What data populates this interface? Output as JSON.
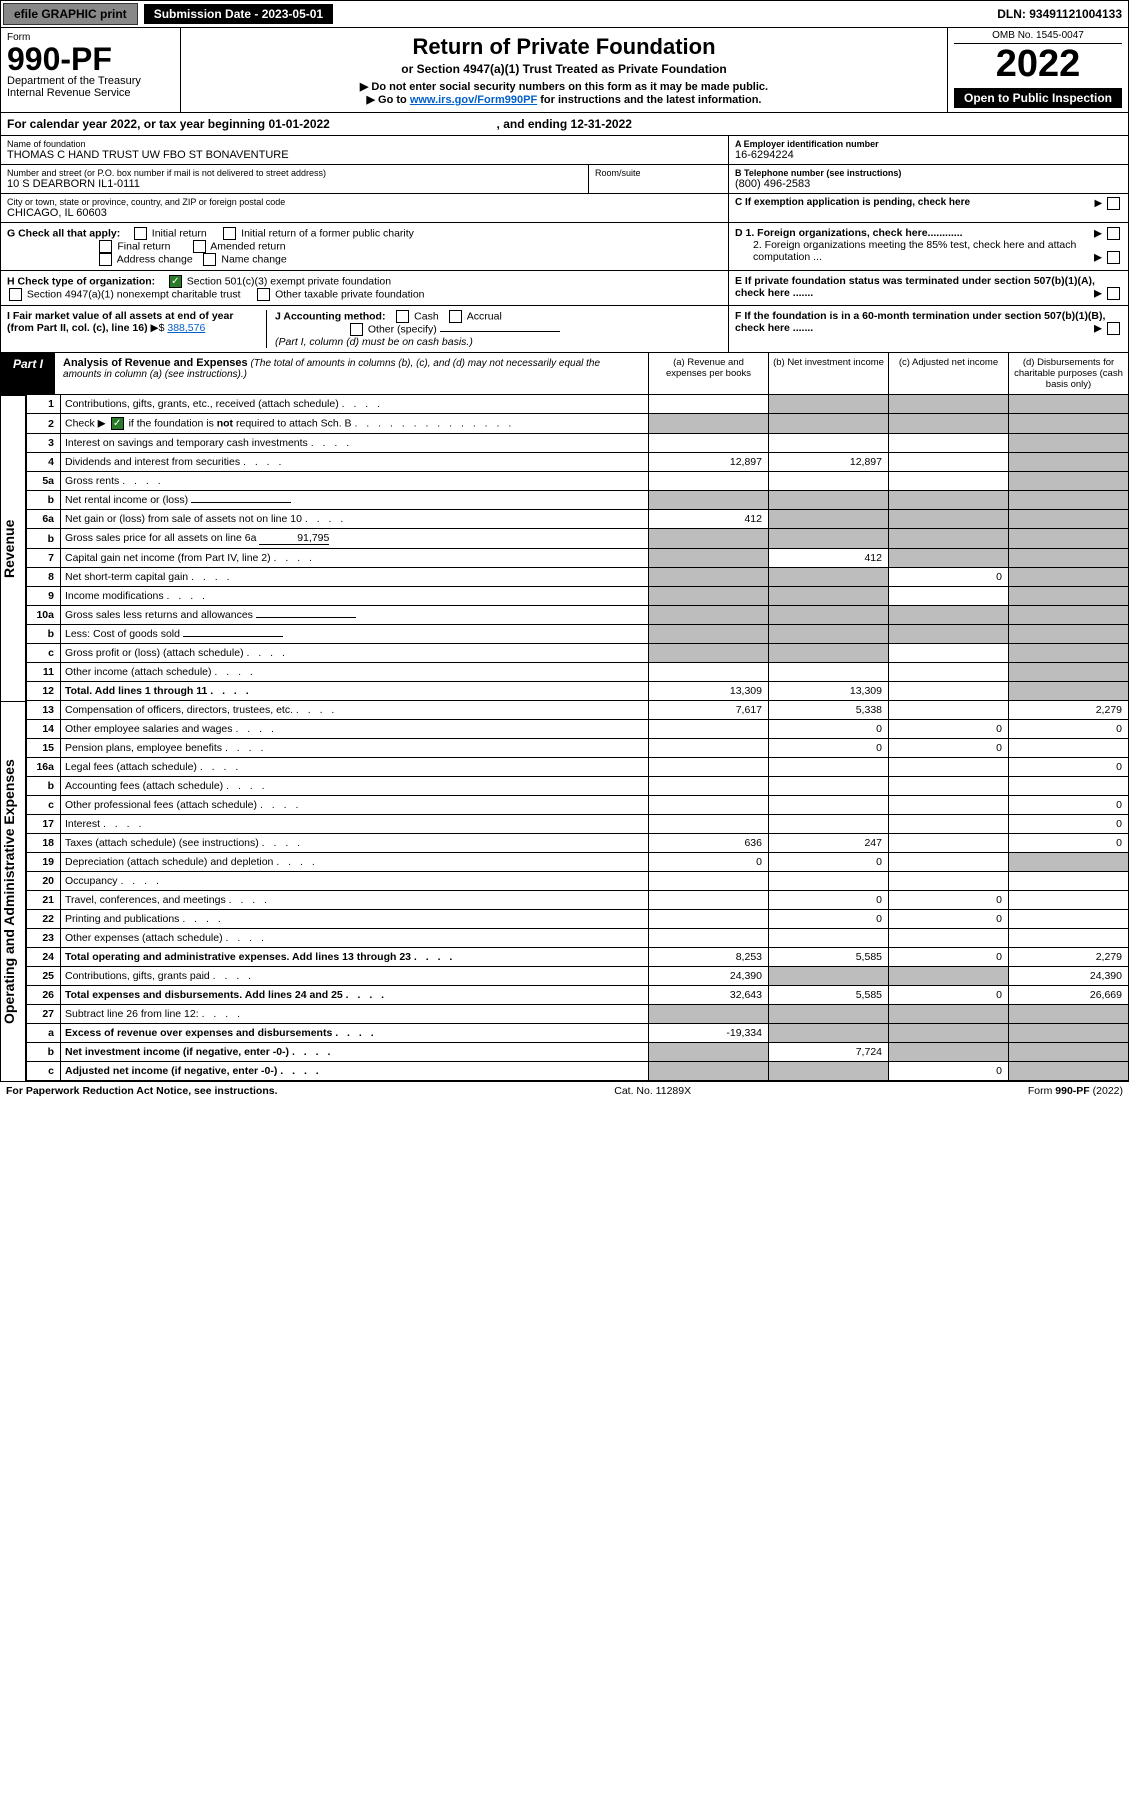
{
  "topbar": {
    "efile": "efile GRAPHIC print",
    "submission": "Submission Date - 2023-05-01",
    "dln": "DLN: 93491121004133"
  },
  "header": {
    "form_label": "Form",
    "form_number": "990-PF",
    "dept": "Department of the Treasury",
    "irs": "Internal Revenue Service",
    "title": "Return of Private Foundation",
    "subtitle": "or Section 4947(a)(1) Trust Treated as Private Foundation",
    "instr1": "▶ Do not enter social security numbers on this form as it may be made public.",
    "instr2_pre": "▶ Go to ",
    "instr2_link": "www.irs.gov/Form990PF",
    "instr2_post": " for instructions and the latest information.",
    "omb": "OMB No. 1545-0047",
    "year": "2022",
    "open": "Open to Public Inspection"
  },
  "calendar": {
    "text_pre": "For calendar year 2022, or tax year beginning ",
    "begin": "01-01-2022",
    "mid": " , and ending ",
    "end": "12-31-2022"
  },
  "meta": {
    "name_label": "Name of foundation",
    "name": "THOMAS C HAND TRUST UW FBO ST BONAVENTURE",
    "ein_label": "A Employer identification number",
    "ein": "16-6294224",
    "addr_label": "Number and street (or P.O. box number if mail is not delivered to street address)",
    "addr": "10 S DEARBORN IL1-0111",
    "room_label": "Room/suite",
    "phone_label": "B Telephone number (see instructions)",
    "phone": "(800) 496-2583",
    "city_label": "City or town, state or province, country, and ZIP or foreign postal code",
    "city": "CHICAGO, IL  60603",
    "c_label": "C If exemption application is pending, check here",
    "d1_label": "D 1. Foreign organizations, check here............",
    "d2_label": "2. Foreign organizations meeting the 85% test, check here and attach computation ...",
    "e_label": "E  If private foundation status was terminated under section 507(b)(1)(A), check here .......",
    "f_label": "F  If the foundation is in a 60-month termination under section 507(b)(1)(B), check here .......",
    "g_label": "G Check all that apply:",
    "g_opts": {
      "initial": "Initial return",
      "initial_former": "Initial return of a former public charity",
      "final": "Final return",
      "amended": "Amended return",
      "address": "Address change",
      "name_change": "Name change"
    },
    "h_label": "H Check type of organization:",
    "h_501c3": "Section 501(c)(3) exempt private foundation",
    "h_4947": "Section 4947(a)(1) nonexempt charitable trust",
    "h_other_tax": "Other taxable private foundation",
    "i_label": "I Fair market value of all assets at end of year (from Part II, col. (c), line 16)",
    "i_value": "388,576",
    "j_label": "J Accounting method:",
    "j_cash": "Cash",
    "j_accrual": "Accrual",
    "j_other": "Other (specify)",
    "j_note": "(Part I, column (d) must be on cash basis.)"
  },
  "part1": {
    "label": "Part I",
    "title": "Analysis of Revenue and Expenses",
    "note": " (The total of amounts in columns (b), (c), and (d) may not necessarily equal the amounts in column (a) (see instructions).)",
    "col_a": "(a)  Revenue and expenses per books",
    "col_b": "(b)  Net investment income",
    "col_c": "(c)  Adjusted net income",
    "col_d": "(d)  Disbursements for charitable purposes (cash basis only)"
  },
  "sections": {
    "revenue": "Revenue",
    "expenses": "Operating and Administrative Expenses"
  },
  "rows": [
    {
      "n": "1",
      "desc": "Contributions, gifts, grants, etc., received (attach schedule)",
      "a": "",
      "b": "shade",
      "c": "shade",
      "d": "shade"
    },
    {
      "n": "2",
      "desc": "Check ▶ ☑ if the foundation is not required to attach Sch. B",
      "a": "shade",
      "b": "shade",
      "c": "shade",
      "d": "shade",
      "check": true
    },
    {
      "n": "3",
      "desc": "Interest on savings and temporary cash investments",
      "a": "",
      "b": "",
      "c": "",
      "d": "shade"
    },
    {
      "n": "4",
      "desc": "Dividends and interest from securities",
      "a": "12,897",
      "b": "12,897",
      "c": "",
      "d": "shade"
    },
    {
      "n": "5a",
      "desc": "Gross rents",
      "a": "",
      "b": "",
      "c": "",
      "d": "shade"
    },
    {
      "n": "b",
      "desc": "Net rental income or (loss)",
      "a": "shade",
      "b": "shade",
      "c": "shade",
      "d": "shade",
      "inline_blank": true
    },
    {
      "n": "6a",
      "desc": "Net gain or (loss) from sale of assets not on line 10",
      "a": "412",
      "b": "shade",
      "c": "shade",
      "d": "shade"
    },
    {
      "n": "b",
      "desc": "Gross sales price for all assets on line 6a",
      "a": "shade",
      "b": "shade",
      "c": "shade",
      "d": "shade",
      "inline_val": "91,795"
    },
    {
      "n": "7",
      "desc": "Capital gain net income (from Part IV, line 2)",
      "a": "shade",
      "b": "412",
      "c": "shade",
      "d": "shade"
    },
    {
      "n": "8",
      "desc": "Net short-term capital gain",
      "a": "shade",
      "b": "shade",
      "c": "0",
      "d": "shade"
    },
    {
      "n": "9",
      "desc": "Income modifications",
      "a": "shade",
      "b": "shade",
      "c": "",
      "d": "shade"
    },
    {
      "n": "10a",
      "desc": "Gross sales less returns and allowances",
      "a": "shade",
      "b": "shade",
      "c": "shade",
      "d": "shade",
      "inline_blank": true
    },
    {
      "n": "b",
      "desc": "Less: Cost of goods sold",
      "a": "shade",
      "b": "shade",
      "c": "shade",
      "d": "shade",
      "inline_blank": true
    },
    {
      "n": "c",
      "desc": "Gross profit or (loss) (attach schedule)",
      "a": "shade",
      "b": "shade",
      "c": "",
      "d": "shade"
    },
    {
      "n": "11",
      "desc": "Other income (attach schedule)",
      "a": "",
      "b": "",
      "c": "",
      "d": "shade"
    },
    {
      "n": "12",
      "desc": "Total. Add lines 1 through 11",
      "a": "13,309",
      "b": "13,309",
      "c": "",
      "d": "shade",
      "bold": true
    }
  ],
  "exp_rows": [
    {
      "n": "13",
      "desc": "Compensation of officers, directors, trustees, etc.",
      "a": "7,617",
      "b": "5,338",
      "c": "",
      "d": "2,279"
    },
    {
      "n": "14",
      "desc": "Other employee salaries and wages",
      "a": "",
      "b": "0",
      "c": "0",
      "d": "0"
    },
    {
      "n": "15",
      "desc": "Pension plans, employee benefits",
      "a": "",
      "b": "0",
      "c": "0",
      "d": ""
    },
    {
      "n": "16a",
      "desc": "Legal fees (attach schedule)",
      "a": "",
      "b": "",
      "c": "",
      "d": "0"
    },
    {
      "n": "b",
      "desc": "Accounting fees (attach schedule)",
      "a": "",
      "b": "",
      "c": "",
      "d": ""
    },
    {
      "n": "c",
      "desc": "Other professional fees (attach schedule)",
      "a": "",
      "b": "",
      "c": "",
      "d": "0"
    },
    {
      "n": "17",
      "desc": "Interest",
      "a": "",
      "b": "",
      "c": "",
      "d": "0"
    },
    {
      "n": "18",
      "desc": "Taxes (attach schedule) (see instructions)",
      "a": "636",
      "b": "247",
      "c": "",
      "d": "0"
    },
    {
      "n": "19",
      "desc": "Depreciation (attach schedule) and depletion",
      "a": "0",
      "b": "0",
      "c": "",
      "d": "shade"
    },
    {
      "n": "20",
      "desc": "Occupancy",
      "a": "",
      "b": "",
      "c": "",
      "d": ""
    },
    {
      "n": "21",
      "desc": "Travel, conferences, and meetings",
      "a": "",
      "b": "0",
      "c": "0",
      "d": ""
    },
    {
      "n": "22",
      "desc": "Printing and publications",
      "a": "",
      "b": "0",
      "c": "0",
      "d": ""
    },
    {
      "n": "23",
      "desc": "Other expenses (attach schedule)",
      "a": "",
      "b": "",
      "c": "",
      "d": ""
    },
    {
      "n": "24",
      "desc": "Total operating and administrative expenses. Add lines 13 through 23",
      "a": "8,253",
      "b": "5,585",
      "c": "0",
      "d": "2,279",
      "bold": true
    },
    {
      "n": "25",
      "desc": "Contributions, gifts, grants paid",
      "a": "24,390",
      "b": "shade",
      "c": "shade",
      "d": "24,390"
    },
    {
      "n": "26",
      "desc": "Total expenses and disbursements. Add lines 24 and 25",
      "a": "32,643",
      "b": "5,585",
      "c": "0",
      "d": "26,669",
      "bold": true
    },
    {
      "n": "27",
      "desc": "Subtract line 26 from line 12:",
      "a": "shade",
      "b": "shade",
      "c": "shade",
      "d": "shade"
    },
    {
      "n": "a",
      "desc": "Excess of revenue over expenses and disbursements",
      "a": "-19,334",
      "b": "shade",
      "c": "shade",
      "d": "shade",
      "bold": true
    },
    {
      "n": "b",
      "desc": "Net investment income (if negative, enter -0-)",
      "a": "shade",
      "b": "7,724",
      "c": "shade",
      "d": "shade",
      "bold": true
    },
    {
      "n": "c",
      "desc": "Adjusted net income (if negative, enter -0-)",
      "a": "shade",
      "b": "shade",
      "c": "0",
      "d": "shade",
      "bold": true
    }
  ],
  "footer": {
    "left": "For Paperwork Reduction Act Notice, see instructions.",
    "center": "Cat. No. 11289X",
    "right": "Form 990-PF (2022)"
  },
  "colors": {
    "shade": "#bdbdbd",
    "link": "#0060cc",
    "check_green": "#2a7a2a"
  }
}
